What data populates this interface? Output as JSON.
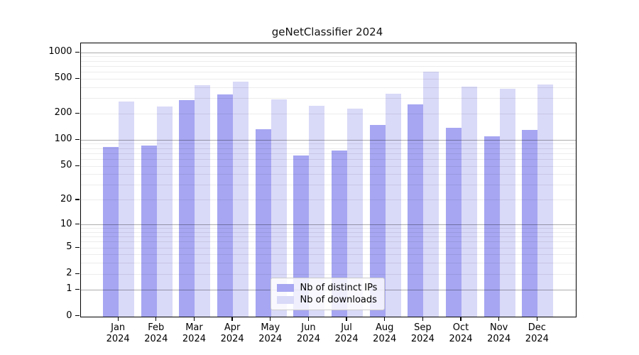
{
  "title": "geNetClassifier 2024",
  "legend": {
    "items": [
      {
        "label": "Nb of distinct IPs",
        "color": "#a6a6f2"
      },
      {
        "label": "Nb of downloads",
        "color": "#d9d9f8"
      }
    ]
  },
  "x_axis": {
    "months": [
      "Jan",
      "Feb",
      "Mar",
      "Apr",
      "May",
      "Jun",
      "Jul",
      "Aug",
      "Sep",
      "Oct",
      "Nov",
      "Dec"
    ],
    "year": "2024"
  },
  "y_axis": {
    "tick_labels": [
      "0",
      "1",
      "2",
      "5",
      "10",
      "20",
      "50",
      "100",
      "200",
      "500",
      "1000"
    ]
  },
  "chart_data": {
    "type": "bar",
    "title": "geNetClassifier 2024",
    "categories": [
      "Jan 2024",
      "Feb 2024",
      "Mar 2024",
      "Apr 2024",
      "May 2024",
      "Jun 2024",
      "Jul 2024",
      "Aug 2024",
      "Sep 2024",
      "Oct 2024",
      "Nov 2024",
      "Dec 2024"
    ],
    "series": [
      {
        "name": "Nb of distinct IPs",
        "color": "#a6a6f2",
        "values": [
          84,
          86,
          287,
          335,
          133,
          66,
          76,
          150,
          257,
          138,
          110,
          130
        ]
      },
      {
        "name": "Nb of downloads",
        "color": "#d9d9f8",
        "values": [
          277,
          241,
          422,
          464,
          292,
          249,
          229,
          339,
          602,
          410,
          389,
          434
        ]
      }
    ],
    "y_scale": "log10(1+x)",
    "y_ticks": [
      0,
      1,
      2,
      5,
      10,
      20,
      50,
      100,
      200,
      500,
      1000
    ],
    "ylim": [
      0,
      1288
    ],
    "grid": "horizontal-minor-and-major",
    "legend_position": "inside-bottom-center"
  }
}
